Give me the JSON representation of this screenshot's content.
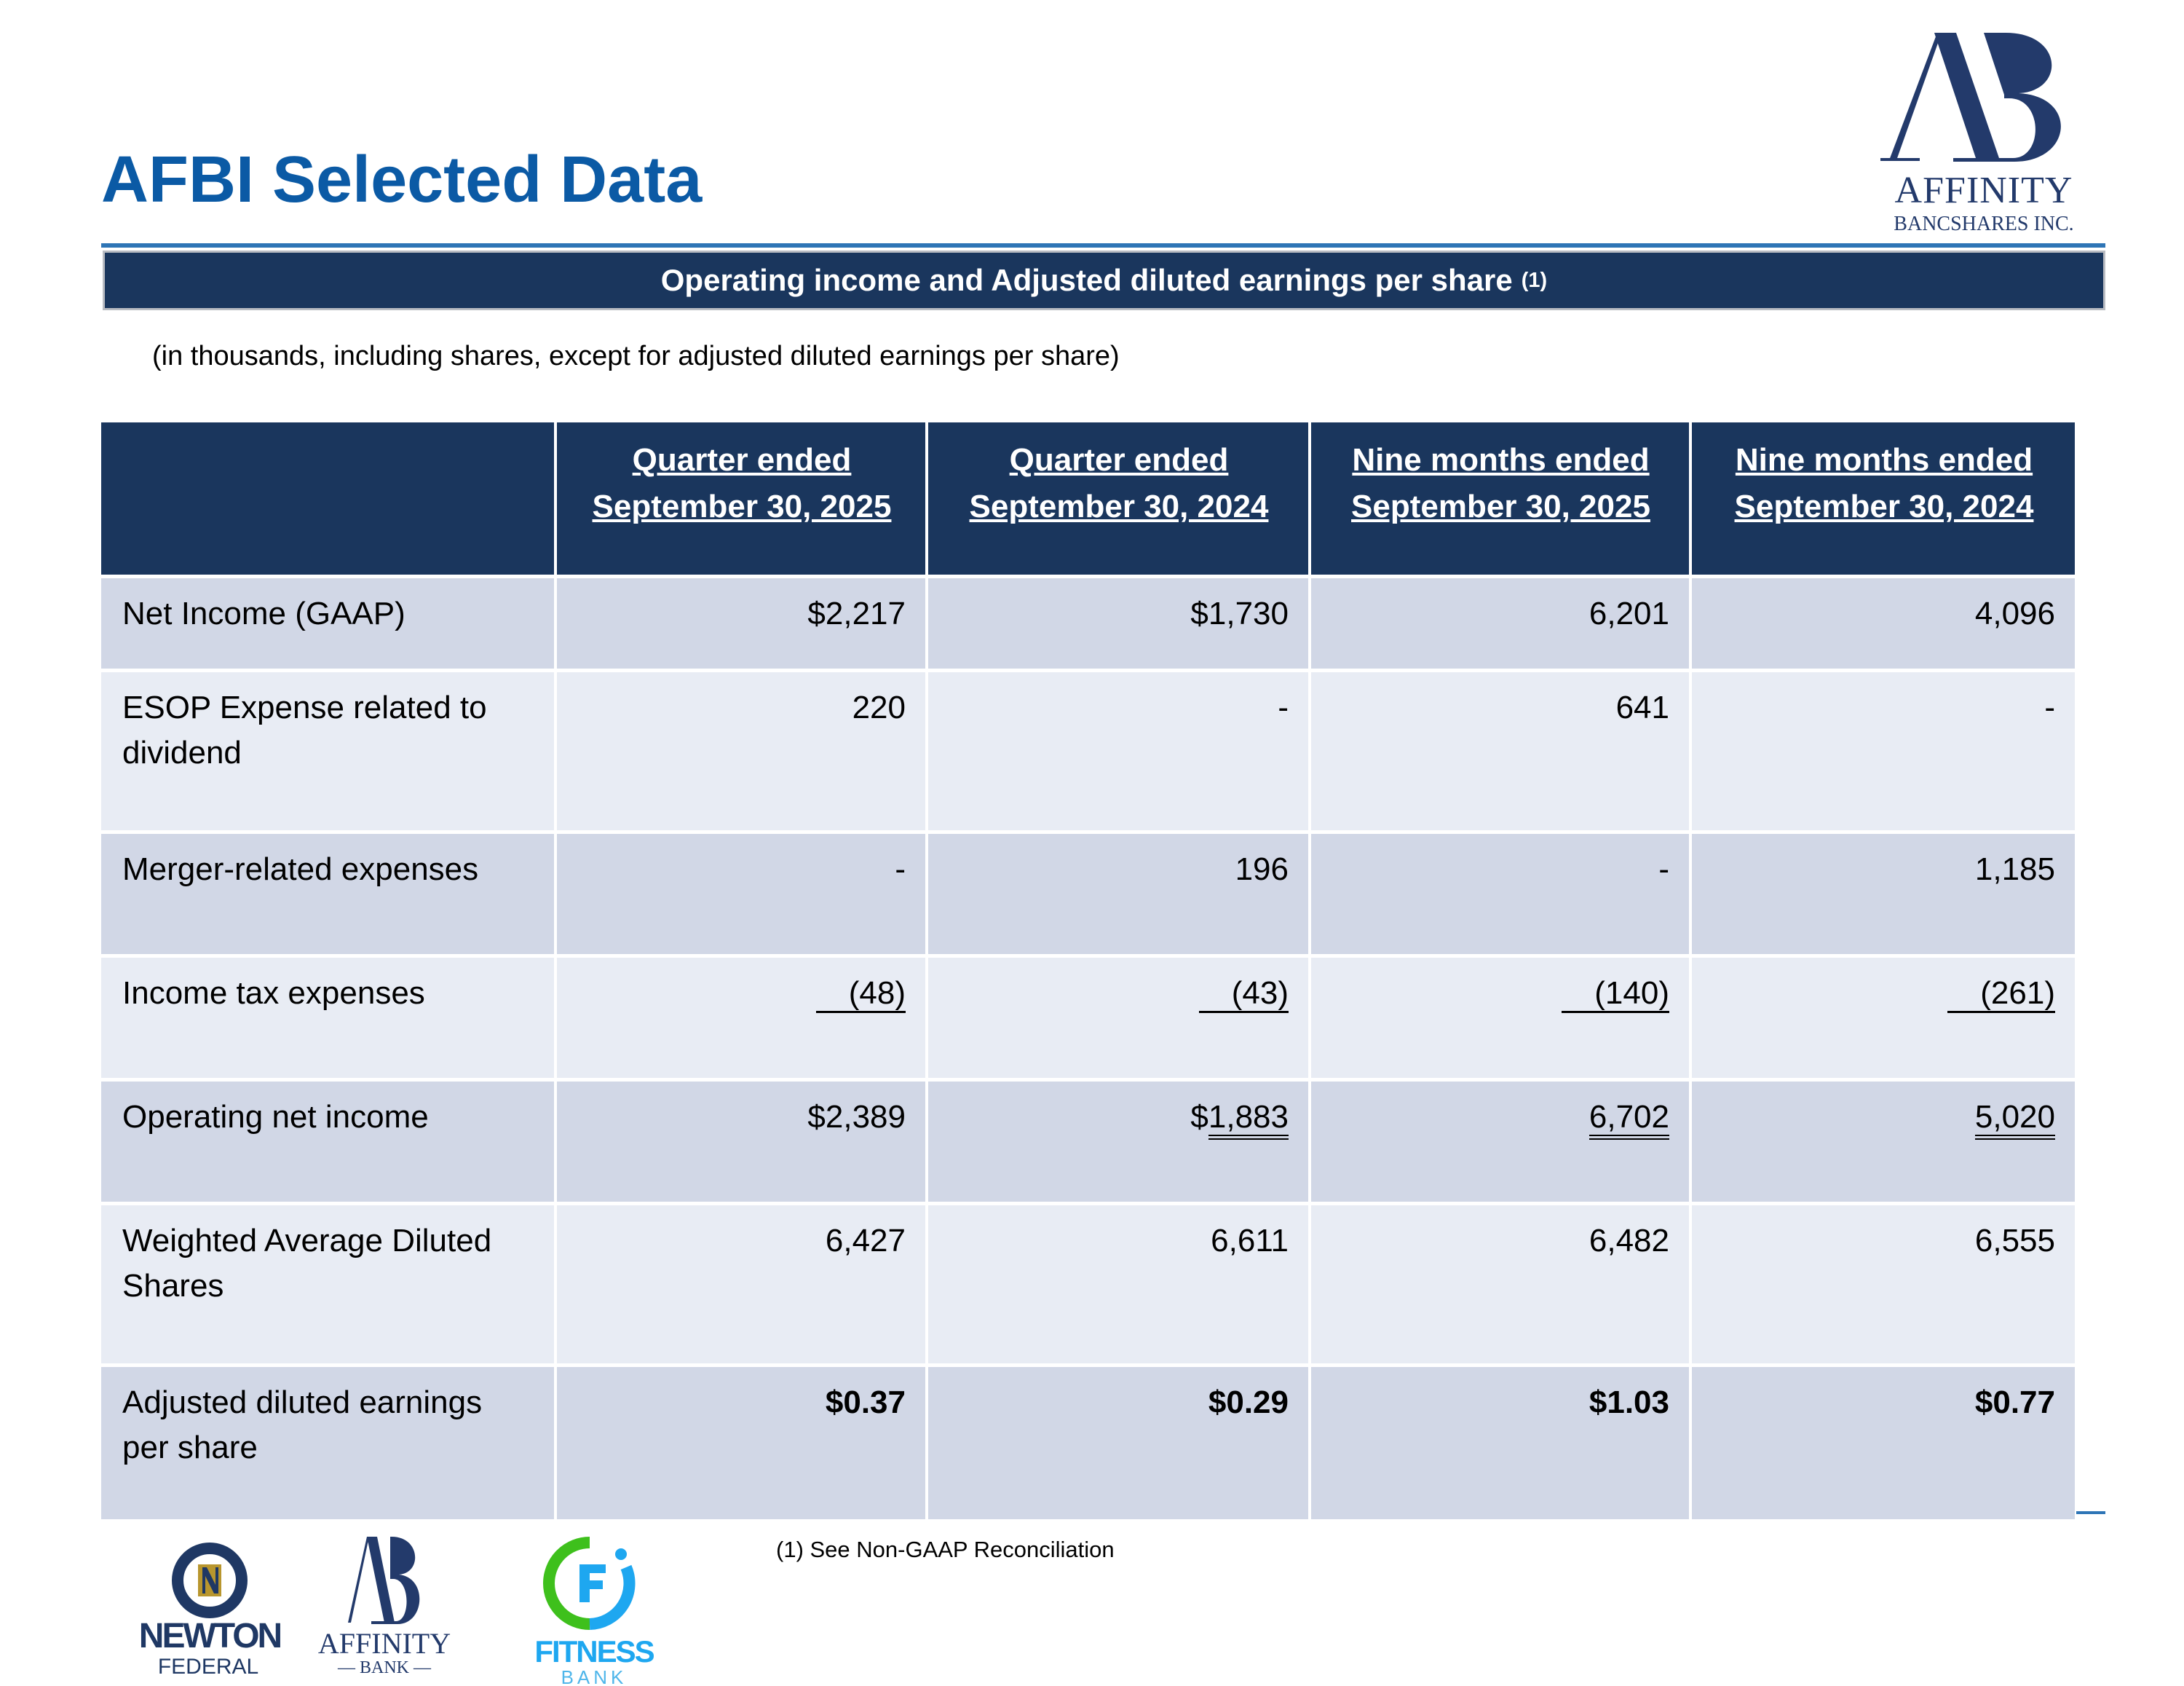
{
  "header": {
    "title": "AFBI Selected Data",
    "logo_text": "AFFINITY BANCSHARES INC."
  },
  "banner": {
    "title": "Operating income and Adjusted diluted earnings per share",
    "note": "(1)"
  },
  "units_note": "(in thousands, including shares, except for adjusted diluted earnings per share)",
  "table": {
    "columns": [
      {
        "line1": "Quarter ended",
        "line2": "September 30, 2025"
      },
      {
        "line1": "Quarter ended",
        "line2": "September 30, 2024"
      },
      {
        "line1": "Nine months ended",
        "line2": "September 30, 2025"
      },
      {
        "line1": "Nine months ended",
        "line2": "September 30, 2024"
      }
    ],
    "rows": [
      {
        "label": "Net Income (GAAP)",
        "height": 1,
        "cells": [
          {
            "value": "$2,217"
          },
          {
            "value": "$1,730"
          },
          {
            "value": "6,201"
          },
          {
            "value": "4,096"
          }
        ]
      },
      {
        "label": "ESOP Expense related to dividend",
        "height": 2,
        "cells": [
          {
            "value": "220"
          },
          {
            "value": "-"
          },
          {
            "value": "641"
          },
          {
            "value": "-"
          }
        ]
      },
      {
        "label": "Merger-related expenses",
        "height": 3,
        "cells": [
          {
            "value": "-"
          },
          {
            "value": "196"
          },
          {
            "value": "-"
          },
          {
            "value": "1,185"
          }
        ]
      },
      {
        "label": "Income tax expenses",
        "height": 3,
        "cells": [
          {
            "value": "(48)",
            "underline": "single"
          },
          {
            "value": "(43)",
            "underline": "single"
          },
          {
            "value": "(140)",
            "underline": "single"
          },
          {
            "value": "(261)",
            "underline": "single"
          }
        ]
      },
      {
        "label": "Operating net income",
        "height": 3,
        "cells": [
          {
            "value": "$2,389"
          },
          {
            "prefix": "$",
            "value": "1,883",
            "underline": "double"
          },
          {
            "value": "6,702",
            "underline": "double"
          },
          {
            "value": "5,020",
            "underline": "double"
          }
        ]
      },
      {
        "label": "Weighted Average Diluted Shares",
        "height": 2,
        "cells": [
          {
            "value": "6,427"
          },
          {
            "value": "6,611"
          },
          {
            "value": "6,482"
          },
          {
            "value": "6,555"
          }
        ]
      },
      {
        "label": "Adjusted diluted earnings per share",
        "height": 4,
        "cells": [
          {
            "value": "$0.37",
            "bold": true
          },
          {
            "value": "$0.29",
            "bold": true
          },
          {
            "value": "$1.03",
            "bold": true
          },
          {
            "value": "$0.77",
            "bold": true
          }
        ]
      }
    ]
  },
  "footnote": "(1) See Non-GAAP Reconciliation",
  "footer_logos": [
    {
      "name": "NEWTON FEDERAL"
    },
    {
      "name": "AFFINITY BANK"
    },
    {
      "name": "FITNESS BANK"
    }
  ],
  "colors": {
    "title": "#0b5aa5",
    "navy": "#1a365d",
    "row_dark": "#d1d7e6",
    "row_light": "#e8ecf4",
    "gold": "#b8962e",
    "green": "#3ec01c",
    "cyan": "#1ea7f0"
  }
}
